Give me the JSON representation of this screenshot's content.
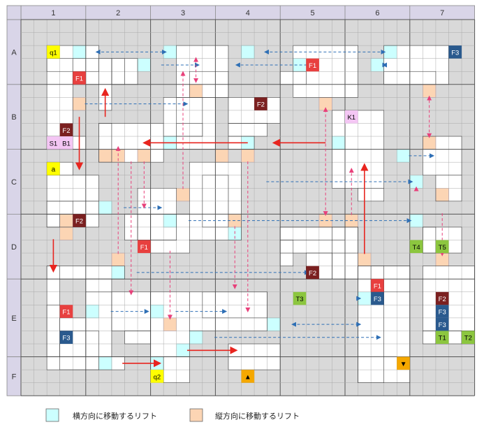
{
  "columns": [
    "1",
    "2",
    "3",
    "4",
    "5",
    "6",
    "7"
  ],
  "rows": [
    "A",
    "B",
    "C",
    "D",
    "E",
    "F"
  ],
  "legend": {
    "horizontal_lift": "横方向に移動するリフト",
    "vertical_lift": "縦方向に移動するリフト"
  },
  "colors": {
    "grid_bg": "#d9d9d9",
    "header_bg": "#d9d5e8",
    "floor": "#ffffff",
    "horizontal_lift": "#ccffff",
    "vertical_lift": "#fcd5b4",
    "red_arrow": "#e8251f",
    "blue_arrow": "#2e6fb5",
    "pink_arrow": "#e8407a"
  },
  "labels": [
    {
      "id": "q1",
      "text": "q1",
      "kind": "yellow"
    },
    {
      "id": "q2",
      "text": "q2",
      "kind": "yellow"
    },
    {
      "id": "a",
      "text": "a",
      "kind": "yellow"
    },
    {
      "id": "S1",
      "text": "S1",
      "kind": "pink"
    },
    {
      "id": "B1",
      "text": "B1",
      "kind": "pink"
    },
    {
      "id": "K1",
      "text": "K1",
      "kind": "pink"
    },
    {
      "id": "F1_A2",
      "text": "F1",
      "kind": "red"
    },
    {
      "id": "F1_A5",
      "text": "F1",
      "kind": "red"
    },
    {
      "id": "F1_D2",
      "text": "F1",
      "kind": "red"
    },
    {
      "id": "F1_E1",
      "text": "F1",
      "kind": "red"
    },
    {
      "id": "F1_E6",
      "text": "F1",
      "kind": "red"
    },
    {
      "id": "F2_B1",
      "text": "F2",
      "kind": "maroon"
    },
    {
      "id": "F2_B4",
      "text": "F2",
      "kind": "maroon"
    },
    {
      "id": "F2_C1",
      "text": "F2",
      "kind": "maroon"
    },
    {
      "id": "F2_D5",
      "text": "F2",
      "kind": "maroon"
    },
    {
      "id": "F2_E7",
      "text": "F2",
      "kind": "maroon"
    },
    {
      "id": "F3_A7",
      "text": "F3",
      "kind": "navy"
    },
    {
      "id": "F3_E1",
      "text": "F3",
      "kind": "navy"
    },
    {
      "id": "F3_E6",
      "text": "F3",
      "kind": "navy"
    },
    {
      "id": "F3_E7a",
      "text": "F3",
      "kind": "navy"
    },
    {
      "id": "F3_E7b",
      "text": "F3",
      "kind": "navy"
    },
    {
      "id": "T1",
      "text": "T1",
      "kind": "green"
    },
    {
      "id": "T2",
      "text": "T2",
      "kind": "green"
    },
    {
      "id": "T3",
      "text": "T3",
      "kind": "green"
    },
    {
      "id": "T4",
      "text": "T4",
      "kind": "green"
    },
    {
      "id": "T5",
      "text": "T5",
      "kind": "green"
    },
    {
      "id": "up",
      "text": "▲",
      "kind": "orange"
    },
    {
      "id": "down",
      "text": "▼",
      "kind": "orange"
    }
  ]
}
